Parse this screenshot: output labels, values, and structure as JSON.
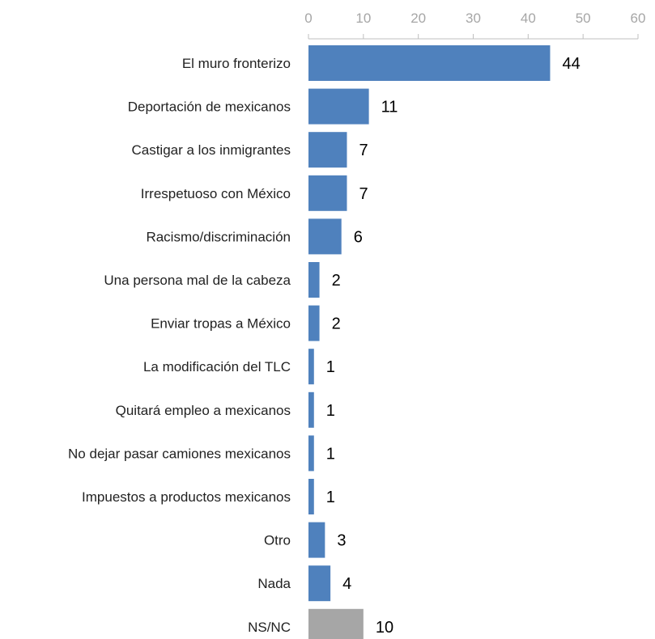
{
  "chart_data": {
    "type": "bar",
    "orientation": "horizontal",
    "categories": [
      "El muro fronterizo",
      "Deportación de mexicanos",
      "Castigar a los inmigrantes",
      "Irrespetuoso con México",
      "Racismo/discriminación",
      "Una persona mal de la cabeza",
      "Enviar tropas a México",
      "La modificación del TLC",
      "Quitará empleo a mexicanos",
      "No dejar pasar camiones mexicanos",
      "Impuestos a productos mexicanos",
      "Otro",
      "Nada",
      "NS/NC"
    ],
    "values": [
      44,
      11,
      7,
      7,
      6,
      2,
      2,
      1,
      1,
      1,
      1,
      3,
      4,
      10
    ],
    "xlim": [
      0,
      60
    ],
    "xticks": [
      "0",
      "10",
      "20",
      "30",
      "40",
      "50",
      "60"
    ],
    "axis_position": "top",
    "grid": false,
    "legend": "none",
    "title": "",
    "xlabel": "",
    "ylabel": ""
  },
  "colors": {
    "bar": "#4f81bd",
    "bar_highlight": "#a6a6a6",
    "axis": "#bfbfbf"
  },
  "highlight_categories": [
    "NS/NC"
  ]
}
